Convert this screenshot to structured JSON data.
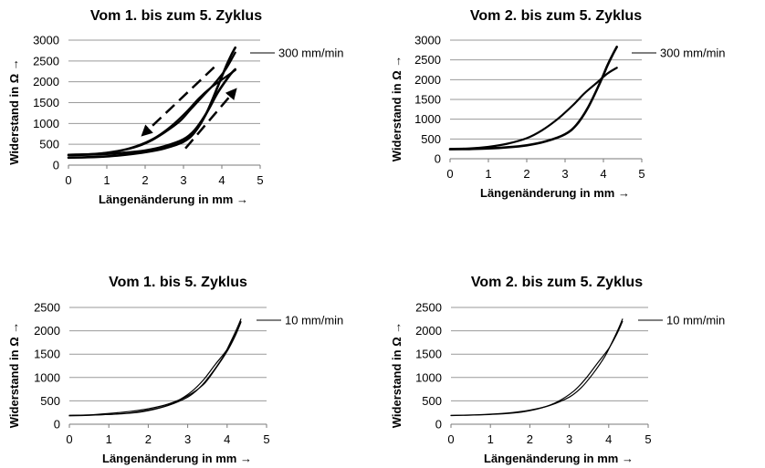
{
  "chart_data": [
    {
      "type": "line",
      "title": "Vom 1. bis zum 5. Zyklus",
      "xlabel": "Längenänderung in mm →",
      "ylabel": "Widerstand in Ω →",
      "xlim": [
        0,
        5
      ],
      "ylim": [
        0,
        3000
      ],
      "xticks": [
        "0",
        "1",
        "2",
        "3",
        "4",
        "5"
      ],
      "yticks": [
        "0",
        "500",
        "1000",
        "1500",
        "2000",
        "2500",
        "3000"
      ],
      "grid": true,
      "legend": "300 mm/min",
      "direction_arrows": true,
      "series": [
        {
          "x": [
            0,
            0.5,
            1,
            1.5,
            2,
            2.5,
            3,
            3.3,
            3.6,
            3.9,
            4.1,
            4.25,
            4.35
          ],
          "y": [
            180,
            190,
            210,
            250,
            310,
            400,
            560,
            800,
            1250,
            1900,
            2350,
            2650,
            2820
          ]
        },
        {
          "x": [
            4.35,
            4.0,
            3.7,
            3.4,
            3.1,
            2.7,
            2.3,
            1.9,
            1.5,
            1.0,
            0.5,
            0
          ],
          "y": [
            2280,
            2050,
            1850,
            1600,
            1300,
            950,
            680,
            500,
            380,
            300,
            260,
            250
          ]
        },
        {
          "x": [
            0,
            0.5,
            1,
            1.5,
            2,
            2.5,
            3,
            3.3,
            3.6,
            3.9,
            4.2,
            4.35
          ],
          "y": [
            240,
            250,
            270,
            300,
            350,
            450,
            620,
            850,
            1250,
            1750,
            2150,
            2300
          ]
        },
        {
          "x": [
            4.35,
            4.1,
            3.8,
            3.5,
            3.2,
            2.9,
            2.5,
            2.1,
            1.7,
            1.2,
            0.7,
            0
          ],
          "y": [
            2700,
            2300,
            1950,
            1650,
            1350,
            1050,
            780,
            560,
            420,
            320,
            270,
            250
          ]
        }
      ]
    },
    {
      "type": "line",
      "title": "Vom 2. bis zum 5. Zyklus",
      "xlabel": "Längenänderung in mm →",
      "ylabel": "Widerstand in Ω →",
      "xlim": [
        0,
        5
      ],
      "ylim": [
        0,
        3000
      ],
      "xticks": [
        "0",
        "1",
        "2",
        "3",
        "4",
        "5"
      ],
      "yticks": [
        "0",
        "500",
        "1000",
        "1500",
        "2000",
        "2500",
        "3000"
      ],
      "grid": true,
      "legend": "300 mm/min",
      "direction_arrows": false,
      "series": [
        {
          "x": [
            0,
            0.5,
            1,
            1.5,
            2,
            2.5,
            3,
            3.3,
            3.6,
            3.9,
            4.1,
            4.25,
            4.35
          ],
          "y": [
            240,
            245,
            260,
            290,
            340,
            440,
            620,
            860,
            1300,
            1900,
            2350,
            2650,
            2830
          ]
        },
        {
          "x": [
            4.35,
            4.1,
            3.8,
            3.5,
            3.2,
            2.8,
            2.4,
            2.0,
            1.5,
            1.0,
            0.5,
            0
          ],
          "y": [
            2300,
            2150,
            1900,
            1650,
            1350,
            1000,
            720,
            520,
            380,
            300,
            260,
            250
          ]
        }
      ]
    },
    {
      "type": "line",
      "title": "Vom 1. bis 5. Zyklus",
      "xlabel": "Längenänderung in mm →",
      "ylabel": "Widerstand in Ω →",
      "xlim": [
        0,
        5
      ],
      "ylim": [
        0,
        2500
      ],
      "xticks": [
        "0",
        "1",
        "2",
        "3",
        "4",
        "5"
      ],
      "yticks": [
        "0",
        "500",
        "1000",
        "1500",
        "2000",
        "2500"
      ],
      "grid": true,
      "legend": "10 mm/min",
      "direction_arrows": false,
      "series": [
        {
          "x": [
            0,
            0.5,
            1,
            1.5,
            2,
            2.5,
            3,
            3.3,
            3.6,
            3.9,
            4.1,
            4.25,
            4.35
          ],
          "y": [
            180,
            190,
            210,
            240,
            300,
            400,
            580,
            780,
            1080,
            1450,
            1780,
            2050,
            2250
          ]
        },
        {
          "x": [
            4.35,
            4.2,
            4.0,
            3.7,
            3.4,
            3.1,
            2.7,
            2.3,
            1.8,
            1.3,
            0.7,
            0
          ],
          "y": [
            2200,
            1900,
            1600,
            1280,
            950,
            700,
            480,
            350,
            260,
            220,
            200,
            190
          ]
        },
        {
          "x": [
            0,
            0.5,
            1,
            1.5,
            2,
            2.5,
            3,
            3.4,
            3.7,
            4.0,
            4.2,
            4.35
          ],
          "y": [
            190,
            200,
            230,
            270,
            330,
            430,
            610,
            850,
            1180,
            1560,
            1880,
            2180
          ]
        }
      ]
    },
    {
      "type": "line",
      "title": "Vom 2. bis zum 5. Zyklus",
      "xlabel": "Längenänderung in mm →",
      "ylabel": "Widerstand in Ω →",
      "xlim": [
        0,
        5
      ],
      "ylim": [
        0,
        2500
      ],
      "xticks": [
        "0",
        "1",
        "2",
        "3",
        "4",
        "5"
      ],
      "yticks": [
        "0",
        "500",
        "1000",
        "1500",
        "2000",
        "2500"
      ],
      "grid": true,
      "legend": "10 mm/min",
      "direction_arrows": false,
      "series": [
        {
          "x": [
            0,
            0.5,
            1,
            1.5,
            2,
            2.5,
            3,
            3.3,
            3.6,
            3.9,
            4.1,
            4.25,
            4.35
          ],
          "y": [
            185,
            195,
            215,
            245,
            300,
            400,
            580,
            780,
            1080,
            1450,
            1780,
            2050,
            2250
          ]
        },
        {
          "x": [
            4.35,
            4.2,
            4.0,
            3.7,
            3.4,
            3.1,
            2.7,
            2.3,
            1.8,
            1.3,
            0.7,
            0
          ],
          "y": [
            2200,
            1920,
            1620,
            1290,
            960,
            700,
            480,
            350,
            260,
            220,
            200,
            190
          ]
        }
      ]
    }
  ]
}
